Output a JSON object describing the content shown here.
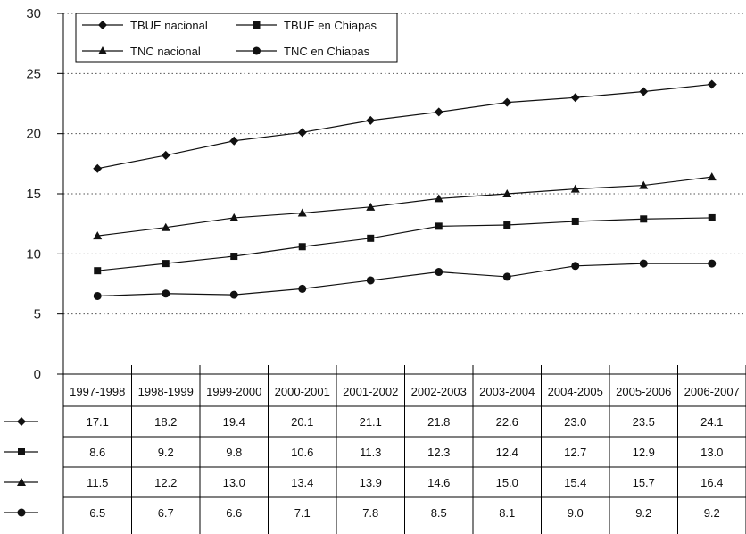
{
  "chart_data": {
    "type": "line",
    "categories": [
      "1997-1998",
      "1998-1999",
      "1999-2000",
      "2000-2001",
      "2001-2002",
      "2002-2003",
      "2003-2004",
      "2004-2005",
      "2005-2006",
      "2006-2007"
    ],
    "ylim": [
      0,
      30
    ],
    "yticks": [
      0,
      5,
      10,
      15,
      20,
      25,
      30
    ],
    "grid": "horizontal dotted",
    "legend_position": "top-left",
    "series": [
      {
        "name": "TBUE nacional",
        "marker": "diamond",
        "values": [
          17.1,
          18.2,
          19.4,
          20.1,
          21.1,
          21.8,
          22.6,
          23.0,
          23.5,
          24.1
        ],
        "labels": [
          "17.1",
          "18.2",
          "19.4",
          "20.1",
          "21.1",
          "21.8",
          "22.6",
          "23.0",
          "23.5",
          "24.1"
        ]
      },
      {
        "name": "TBUE en Chiapas",
        "marker": "square",
        "values": [
          8.6,
          9.2,
          9.8,
          10.6,
          11.3,
          12.3,
          12.4,
          12.7,
          12.9,
          13.0
        ],
        "labels": [
          "8.6",
          "9.2",
          "9.8",
          "10.6",
          "11.3",
          "12.3",
          "12.4",
          "12.7",
          "12.9",
          "13.0"
        ]
      },
      {
        "name": "TNC nacional",
        "marker": "triangle",
        "values": [
          11.5,
          12.2,
          13.0,
          13.4,
          13.9,
          14.6,
          15.0,
          15.4,
          15.7,
          16.4
        ],
        "labels": [
          "11.5",
          "12.2",
          "13.0",
          "13.4",
          "13.9",
          "14.6",
          "15.0",
          "15.4",
          "15.7",
          "16.4"
        ]
      },
      {
        "name": "TNC en Chiapas",
        "marker": "circle",
        "values": [
          6.5,
          6.7,
          6.6,
          7.1,
          7.8,
          8.5,
          8.1,
          9.0,
          9.2,
          9.2
        ],
        "labels": [
          "6.5",
          "6.7",
          "6.6",
          "7.1",
          "7.8",
          "8.5",
          "8.1",
          "9.0",
          "9.2",
          "9.2"
        ]
      }
    ],
    "legend_order": [
      0,
      1,
      2,
      3
    ]
  }
}
